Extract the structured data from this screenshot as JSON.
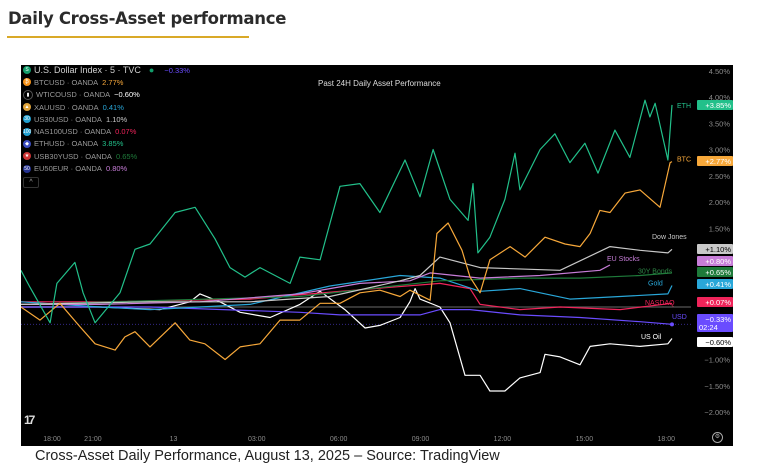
{
  "page": {
    "title": "Daily Cross-Asset performance",
    "caption": "Cross-Asset Daily Performance, August 13, 2025 – Source: TradingView"
  },
  "legend": {
    "header": {
      "label": "U.S. Dollar Index · 5 · TVC",
      "value": "−0.33%",
      "icon": "S",
      "color": "#6a4cff",
      "icon_color": "#129d6b"
    },
    "items": [
      {
        "label": "BTCUSD · OANDA",
        "value": "2.77%",
        "color": "#f7a83a",
        "icon": "₿",
        "icon_color": "#f7931a"
      },
      {
        "label": "WTICOUSD · OANDA",
        "value": "−0.60%",
        "color": "#ffffff",
        "icon": "▮",
        "icon_color": "#000000"
      },
      {
        "label": "XAUUSD · OANDA",
        "value": "0.41%",
        "color": "#29a7d9",
        "icon": "▲",
        "icon_color": "#e0a43a"
      },
      {
        "label": "US30USD · OANDA",
        "value": "1.10%",
        "color": "#c8c8c8",
        "icon": "30",
        "icon_color": "#1f9fd0"
      },
      {
        "label": "NAS100USD · OANDA",
        "value": "0.07%",
        "color": "#f0245a",
        "icon": "100",
        "icon_color": "#1f9fd0"
      },
      {
        "label": "ETHUSD · OANDA",
        "value": "3.85%",
        "color": "#22c08a",
        "icon": "◆",
        "icon_color": "#3a4cc0"
      },
      {
        "label": "USB30YUSD · OANDA",
        "value": "0.65%",
        "color": "#1e7a3a",
        "icon": "★",
        "icon_color": "#c33"
      },
      {
        "label": "EU50EUR · OANDA",
        "value": "0.80%",
        "color": "#c77dd8",
        "icon": "50",
        "icon_color": "#23318f"
      }
    ],
    "collapse_icon": "^"
  },
  "chart_data": {
    "type": "line",
    "title": "Past 24H Daily Asset Performance",
    "xlabel": "",
    "ylabel": "",
    "x_unit": "hours since Aug 12 18:00",
    "xlim": [
      -1.14,
      22.8
    ],
    "ylim": [
      -2.2,
      4.6
    ],
    "x_ticks": [
      {
        "value": 0,
        "label": "18:00"
      },
      {
        "value": 1.5,
        "label": "21:00"
      },
      {
        "value": 4.45,
        "label": "13"
      },
      {
        "value": 7.5,
        "label": "03:00"
      },
      {
        "value": 10.5,
        "label": "06:00"
      },
      {
        "value": 13.5,
        "label": "09:00"
      },
      {
        "value": 16.5,
        "label": "12:00"
      },
      {
        "value": 19.5,
        "label": "15:00"
      },
      {
        "value": 22.5,
        "label": "18:00"
      }
    ],
    "y_ticks": [
      {
        "value": 4.5,
        "label": "4.50%"
      },
      {
        "value": 4.0,
        "label": "4.00%"
      },
      {
        "value": 3.5,
        "label": "3.50%"
      },
      {
        "value": 3.0,
        "label": "3.00%"
      },
      {
        "value": 2.5,
        "label": "2.50%"
      },
      {
        "value": 2.0,
        "label": "2.00%"
      },
      {
        "value": 1.5,
        "label": "1.50%"
      },
      {
        "value": -1.0,
        "label": "−1.00%"
      },
      {
        "value": -1.5,
        "label": "−1.50%"
      },
      {
        "value": -2.0,
        "label": "−2.00%"
      }
    ],
    "grid": false,
    "series": [
      {
        "name": "ETH",
        "color": "#22c08a",
        "badge": "+3.85%",
        "badge_text": "#ffffff",
        "x": [
          -1.14,
          -0.81,
          -0.07,
          0.18,
          0.84,
          1.14,
          1.58,
          2.49,
          3.04,
          3.59,
          4.51,
          5.24,
          5.97,
          6.52,
          7.07,
          7.62,
          8.72,
          9.08,
          9.82,
          10.55,
          11.28,
          12.01,
          12.93,
          13.48,
          13.96,
          14.58,
          15.24,
          15.42,
          15.6,
          16.04,
          16.59,
          16.96,
          17.14,
          17.88,
          18.42,
          18.97,
          19.52,
          20.0,
          20.62,
          21.17,
          21.72,
          21.9,
          22.09,
          22.56,
          22.71
        ],
        "y": [
          0.7,
          0.38,
          -0.3,
          0.45,
          0.85,
          0.27,
          -0.3,
          0.27,
          1.1,
          1.2,
          1.8,
          1.9,
          1.3,
          0.75,
          0.57,
          0.75,
          0.45,
          0.95,
          0.9,
          2.3,
          2.35,
          1.8,
          2.8,
          2.1,
          3.0,
          2.05,
          1.65,
          2.35,
          1.03,
          1.33,
          2.05,
          2.93,
          2.23,
          3.0,
          3.3,
          2.75,
          3.12,
          2.55,
          3.37,
          2.85,
          3.94,
          3.62,
          3.88,
          2.8,
          3.85
        ]
      },
      {
        "name": "BTC",
        "color": "#f7a83a",
        "badge": "+2.77%",
        "badge_text": "#ffffff",
        "x": [
          -1.14,
          -0.44,
          0.29,
          1.03,
          1.58,
          2.31,
          2.67,
          3.04,
          3.59,
          4.51,
          5.05,
          5.6,
          6.34,
          6.89,
          7.62,
          8.35,
          9.08,
          9.82,
          10.55,
          11.28,
          12.01,
          12.75,
          13.11,
          13.85,
          14.1,
          14.51,
          15.02,
          15.31,
          15.68,
          16.04,
          16.78,
          17.33,
          18.06,
          18.79,
          19.34,
          19.71,
          20.07,
          20.44,
          20.99,
          21.54,
          22.27,
          22.64,
          22.71
        ],
        "y": [
          0,
          -0.25,
          0.07,
          -0.38,
          -0.7,
          -0.82,
          -0.57,
          -0.47,
          -0.76,
          -0.3,
          -0.63,
          -0.7,
          -1.0,
          -0.76,
          -0.7,
          -0.25,
          -0.25,
          0.07,
          0.07,
          0.27,
          0.32,
          0.2,
          0.32,
          0.13,
          1.4,
          1.6,
          1.08,
          0.57,
          0.27,
          0.9,
          1.15,
          0.95,
          1.33,
          1.2,
          1.15,
          1.4,
          1.84,
          1.8,
          2.17,
          2.23,
          1.9,
          2.75,
          2.77
        ]
      },
      {
        "name": "Dow Jones",
        "color": "#c8c8c8",
        "badge": "+1.10%",
        "badge_text": "#000000",
        "x": [
          -1.14,
          3.59,
          7.25,
          10.18,
          12.75,
          13.48,
          14.21,
          15.68,
          18.61,
          20.44,
          21.54,
          22.56,
          22.71
        ],
        "y": [
          0.05,
          0.1,
          0.1,
          0.2,
          0.5,
          0.6,
          0.95,
          0.75,
          0.7,
          1.15,
          1.08,
          1.03,
          1.1
        ]
      },
      {
        "name": "EU Stocks",
        "color": "#c77dd8",
        "badge": "+0.80%",
        "badge_text": "#ffffff",
        "x": [
          -1.14,
          1.76,
          5.42,
          9.08,
          11.28,
          13.11,
          13.85,
          15.68,
          17.88,
          20.07,
          20.44
        ],
        "y": [
          0.05,
          0.05,
          0.1,
          0.25,
          0.45,
          0.5,
          0.65,
          0.55,
          0.6,
          0.7,
          0.8
        ]
      },
      {
        "name": "30Y Bonds",
        "color": "#1e7a3a",
        "badge": "+0.65%",
        "badge_text": "#ffffff",
        "x": [
          -1.14,
          9.08,
          14.21,
          17.14,
          19.34,
          21.54,
          22.71
        ],
        "y": [
          0.05,
          0.2,
          0.5,
          0.55,
          0.55,
          0.6,
          0.65
        ]
      },
      {
        "name": "Gold",
        "color": "#29a7d9",
        "badge": "+0.41%",
        "badge_text": "#ffffff",
        "x": [
          -1.14,
          1.76,
          3.59,
          7.25,
          10.18,
          12.75,
          14.21,
          15.68,
          17.14,
          18.97,
          20.81,
          22.56,
          22.71
        ],
        "y": [
          0.1,
          0.0,
          -0.05,
          0.05,
          0.4,
          0.6,
          0.55,
          0.3,
          0.35,
          0.15,
          0.2,
          0.25,
          0.41
        ]
      },
      {
        "name": "NASDAQ",
        "color": "#f0245a",
        "badge": "+0.07%",
        "badge_text": "#ffffff",
        "x": [
          -1.14,
          1.76,
          7.25,
          10.55,
          14.21,
          15.31,
          15.68,
          17.14,
          18.61,
          20.81,
          22.71
        ],
        "y": [
          0.1,
          0.1,
          0.15,
          0.3,
          0.45,
          0.35,
          0.05,
          -0.05,
          0.0,
          -0.05,
          0.07
        ]
      },
      {
        "name": "USD",
        "color": "#6a4cff",
        "badge": "−0.33%",
        "badge_sub": "02:24",
        "badge_text": "#ffffff",
        "x": [
          -1.14,
          3.59,
          9.08,
          10.55,
          13.48,
          14.21,
          15.31,
          17.14,
          19.34,
          21.54,
          22.71
        ],
        "y": [
          0.0,
          0.0,
          -0.1,
          -0.15,
          -0.15,
          -0.05,
          -0.05,
          -0.15,
          -0.2,
          -0.28,
          -0.33
        ]
      },
      {
        "name": "US Oil",
        "color": "#ffffff",
        "badge": "−0.60%",
        "badge_text": "#000000",
        "x": [
          -1.14,
          1.76,
          3.96,
          5.05,
          5.42,
          6.15,
          6.89,
          7.99,
          9.08,
          9.82,
          10.73,
          11.47,
          12.01,
          12.75,
          13.11,
          13.3,
          13.48,
          14.21,
          14.58,
          15.13,
          15.68,
          16.04,
          16.59,
          17.14,
          17.88,
          18.06,
          18.61,
          19.34,
          19.71,
          20.44,
          21.54,
          22.56,
          22.71
        ],
        "y": [
          0.0,
          0.0,
          -0.05,
          0.1,
          0.25,
          0.1,
          -0.1,
          -0.2,
          0.05,
          0.3,
          -0.05,
          -0.4,
          -0.35,
          -0.2,
          0.1,
          0.35,
          0.15,
          0.0,
          -0.3,
          -1.3,
          -1.3,
          -1.6,
          -1.6,
          -1.35,
          -1.25,
          -0.9,
          -0.95,
          -1.1,
          -0.75,
          -0.7,
          -0.75,
          -0.7,
          -0.6
        ]
      }
    ],
    "zero_line": true
  },
  "footer": {
    "settings_icon": "gear-icon",
    "logo": "TV"
  }
}
